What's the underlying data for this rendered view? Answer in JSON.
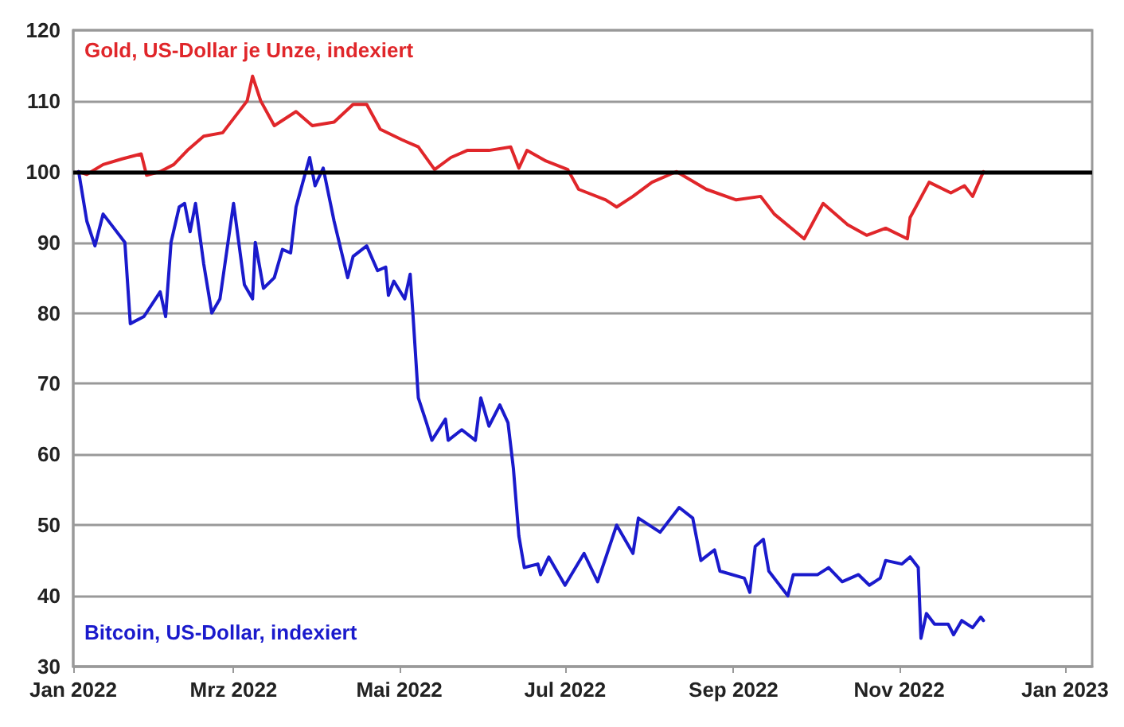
{
  "chart_data": {
    "type": "line",
    "xlim": [
      "2022-01-01",
      "2023-01-11"
    ],
    "xticks": [
      {
        "value": "2022-01-01",
        "label": "Jan 2022"
      },
      {
        "value": "2022-03-01",
        "label": "Mrz 2022"
      },
      {
        "value": "2022-05-01",
        "label": "Mai 2022"
      },
      {
        "value": "2022-07-01",
        "label": "Jul 2022"
      },
      {
        "value": "2022-09-01",
        "label": "Sep 2022"
      },
      {
        "value": "2022-11-01",
        "label": "Nov 2022"
      },
      {
        "value": "2023-01-01",
        "label": "Jan 2023"
      }
    ],
    "ylim": [
      30,
      120
    ],
    "yticks": [
      30,
      40,
      50,
      60,
      70,
      80,
      90,
      100,
      110,
      120
    ],
    "grid": "y",
    "legend": false,
    "marker": "none",
    "line_style": "solid",
    "ref_lines": [
      {
        "axis": "y",
        "value": 100,
        "color": "#000000"
      }
    ],
    "series": [
      {
        "name": "Gold, US-Dollar je Unze, indexiert",
        "color": "#e0262a",
        "x": [
          "2022-01-03",
          "2022-01-06",
          "2022-01-12",
          "2022-01-19",
          "2022-01-26",
          "2022-01-28",
          "2022-02-02",
          "2022-02-07",
          "2022-02-12",
          "2022-02-18",
          "2022-02-25",
          "2022-03-01",
          "2022-03-06",
          "2022-03-08",
          "2022-03-11",
          "2022-03-16",
          "2022-03-24",
          "2022-03-30",
          "2022-04-07",
          "2022-04-14",
          "2022-04-19",
          "2022-04-24",
          "2022-05-02",
          "2022-05-08",
          "2022-05-14",
          "2022-05-20",
          "2022-05-26",
          "2022-06-03",
          "2022-06-11",
          "2022-06-14",
          "2022-06-17",
          "2022-06-24",
          "2022-07-02",
          "2022-07-06",
          "2022-07-16",
          "2022-07-20",
          "2022-07-26",
          "2022-08-02",
          "2022-08-11",
          "2022-08-22",
          "2022-09-02",
          "2022-09-11",
          "2022-09-16",
          "2022-09-27",
          "2022-10-04",
          "2022-10-13",
          "2022-10-20",
          "2022-10-27",
          "2022-11-04",
          "2022-11-05",
          "2022-11-12",
          "2022-11-20",
          "2022-11-25",
          "2022-11-28",
          "2022-12-02"
        ],
        "values": [
          100,
          99.6,
          101,
          101.8,
          102.5,
          99.5,
          100,
          101,
          103,
          105,
          105.5,
          107.5,
          110,
          113.5,
          110,
          106.5,
          108.5,
          106.5,
          107,
          109.5,
          109.5,
          106,
          104.5,
          103.5,
          100.3,
          102,
          103,
          103,
          103.5,
          100.5,
          103,
          101.5,
          100.3,
          97.5,
          96,
          95,
          96.5,
          98.5,
          100,
          97.5,
          96,
          96.5,
          94,
          90.5,
          95.5,
          92.5,
          91,
          92,
          90.5,
          93.5,
          98.5,
          97,
          98,
          96.5,
          100
        ]
      },
      {
        "name": "Bitcoin, US-Dollar, indexiert",
        "color": "#1a1acc",
        "x": [
          "2022-01-03",
          "2022-01-06",
          "2022-01-09",
          "2022-01-12",
          "2022-01-16",
          "2022-01-20",
          "2022-01-22",
          "2022-01-27",
          "2022-02-02",
          "2022-02-04",
          "2022-02-06",
          "2022-02-09",
          "2022-02-11",
          "2022-02-13",
          "2022-02-15",
          "2022-02-18",
          "2022-02-21",
          "2022-02-24",
          "2022-03-01",
          "2022-03-05",
          "2022-03-08",
          "2022-03-09",
          "2022-03-12",
          "2022-03-16",
          "2022-03-19",
          "2022-03-22",
          "2022-03-24",
          "2022-03-29",
          "2022-03-31",
          "2022-04-03",
          "2022-04-07",
          "2022-04-12",
          "2022-04-14",
          "2022-04-19",
          "2022-04-23",
          "2022-04-26",
          "2022-04-27",
          "2022-04-29",
          "2022-05-03",
          "2022-05-05",
          "2022-05-06",
          "2022-05-08",
          "2022-05-11",
          "2022-05-13",
          "2022-05-18",
          "2022-05-19",
          "2022-05-24",
          "2022-05-29",
          "2022-05-31",
          "2022-06-03",
          "2022-06-07",
          "2022-06-10",
          "2022-06-12",
          "2022-06-14",
          "2022-06-16",
          "2022-06-21",
          "2022-06-22",
          "2022-06-25",
          "2022-07-01",
          "2022-07-08",
          "2022-07-13",
          "2022-07-20",
          "2022-07-26",
          "2022-07-28",
          "2022-08-05",
          "2022-08-12",
          "2022-08-17",
          "2022-08-20",
          "2022-08-25",
          "2022-08-27",
          "2022-09-05",
          "2022-09-07",
          "2022-09-09",
          "2022-09-12",
          "2022-09-14",
          "2022-09-21",
          "2022-09-23",
          "2022-10-02",
          "2022-10-06",
          "2022-10-11",
          "2022-10-17",
          "2022-10-21",
          "2022-10-25",
          "2022-10-27",
          "2022-11-02",
          "2022-11-05",
          "2022-11-08",
          "2022-11-09",
          "2022-11-11",
          "2022-11-14",
          "2022-11-19",
          "2022-11-21",
          "2022-11-24",
          "2022-11-28",
          "2022-12-01",
          "2022-12-02"
        ],
        "values": [
          100,
          93,
          89.5,
          94,
          92,
          90,
          78.5,
          79.5,
          83,
          79.5,
          90,
          95,
          95.5,
          91.5,
          95.5,
          87,
          80,
          82,
          95.5,
          84,
          82,
          90,
          83.5,
          85,
          89,
          88.5,
          95,
          102,
          98,
          100.5,
          93,
          85,
          88,
          89.5,
          86,
          86.5,
          82.5,
          84.5,
          82,
          85.5,
          80,
          68,
          64.5,
          62,
          65,
          62,
          63.5,
          62,
          68,
          64,
          67,
          64.5,
          58,
          48.5,
          44,
          44.5,
          43,
          45.5,
          41.5,
          46,
          42,
          50,
          46,
          51,
          49,
          52.5,
          51,
          45,
          46.5,
          43.5,
          42.5,
          40.5,
          47,
          48,
          43.5,
          40,
          43,
          43,
          44,
          42,
          43,
          41.5,
          42.5,
          45,
          44.5,
          45.5,
          44,
          34,
          37.5,
          36,
          36,
          34.5,
          36.5,
          35.5,
          37,
          36.5
        ]
      }
    ]
  }
}
